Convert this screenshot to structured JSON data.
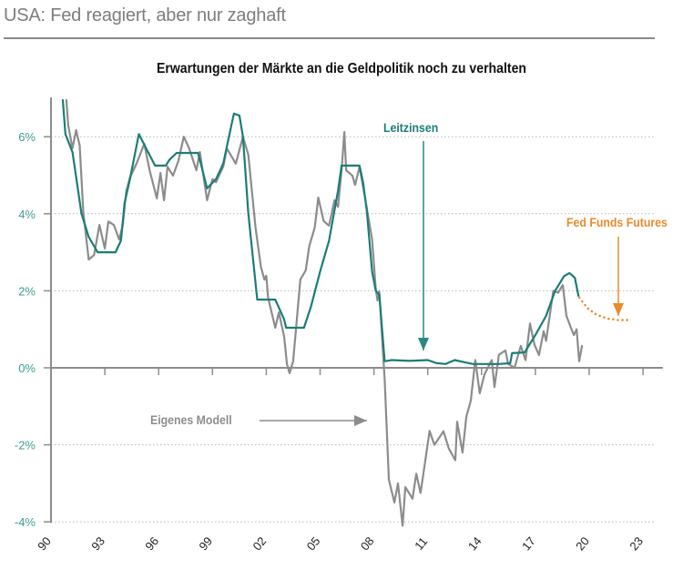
{
  "headline": "USA: Fed reagiert, aber nur zaghaft",
  "chart_data": {
    "type": "line",
    "title": "Erwartungen der Märkte an die Geldpolitik noch zu verhalten",
    "xlabel": "",
    "ylabel": "",
    "xlim": [
      1990,
      2024
    ],
    "ylim": [
      -4,
      7
    ],
    "grid": "horizontal dotted",
    "x_ticks": [
      1990,
      1993,
      1996,
      1999,
      2002,
      2005,
      2008,
      2011,
      2014,
      2017,
      2020,
      2023
    ],
    "x_tick_labels": [
      "90",
      "93",
      "96",
      "99",
      "02",
      "05",
      "08",
      "11",
      "14",
      "17",
      "20",
      "23"
    ],
    "y_ticks": [
      -4,
      -2,
      0,
      2,
      4,
      6
    ],
    "y_tick_labels": [
      "-4%",
      "-2%",
      "0%",
      "2%",
      "4%",
      "6%"
    ],
    "colors": {
      "leitzinsen": "#1b7d76",
      "modell": "#8c8c8c",
      "futures": "#e98a2c",
      "axis_labels": "#3f9b95"
    },
    "annotations": {
      "leitzinsen": "Leitzinsen",
      "futures": "Fed Funds Futures",
      "modell": "Eigenes Modell"
    },
    "series": [
      {
        "name": "Leitzinsen",
        "style": "solid",
        "points": [
          [
            1990.66,
            6.95
          ],
          [
            1990.8,
            6.07
          ],
          [
            1991.2,
            5.6
          ],
          [
            1991.7,
            4.0
          ],
          [
            1992.1,
            3.4
          ],
          [
            1992.6,
            3.0
          ],
          [
            1993.6,
            3.0
          ],
          [
            1993.9,
            3.3
          ],
          [
            1994.1,
            4.28
          ],
          [
            1994.4,
            4.9
          ],
          [
            1994.9,
            6.07
          ],
          [
            1995.3,
            5.7
          ],
          [
            1995.8,
            5.25
          ],
          [
            1996.4,
            5.25
          ],
          [
            1996.6,
            5.4
          ],
          [
            1997.0,
            5.58
          ],
          [
            1998.2,
            5.58
          ],
          [
            1998.7,
            4.66
          ],
          [
            1999.2,
            4.9
          ],
          [
            1999.6,
            5.3
          ],
          [
            2000.1,
            6.4
          ],
          [
            2000.2,
            6.6
          ],
          [
            2000.5,
            6.55
          ],
          [
            2000.7,
            6.0
          ],
          [
            2001.0,
            4.0
          ],
          [
            2001.5,
            1.77
          ],
          [
            2002.5,
            1.77
          ],
          [
            2003.0,
            1.25
          ],
          [
            2003.1,
            1.04
          ],
          [
            2004.1,
            1.04
          ],
          [
            2004.5,
            1.6
          ],
          [
            2005.0,
            2.5
          ],
          [
            2005.5,
            3.3
          ],
          [
            2006.0,
            4.6
          ],
          [
            2006.2,
            5.25
          ],
          [
            2007.2,
            5.25
          ],
          [
            2007.4,
            4.8
          ],
          [
            2007.6,
            4.1
          ],
          [
            2007.9,
            2.5
          ],
          [
            2008.1,
            2.0
          ],
          [
            2008.3,
            1.9
          ],
          [
            2008.6,
            0.17
          ],
          [
            2009.0,
            0.2
          ],
          [
            2010.0,
            0.18
          ],
          [
            2011.0,
            0.2
          ],
          [
            2011.5,
            0.12
          ],
          [
            2012.0,
            0.1
          ],
          [
            2012.5,
            0.2
          ],
          [
            2013.0,
            0.15
          ],
          [
            2013.5,
            0.1
          ],
          [
            2014.0,
            0.1
          ],
          [
            2015.0,
            0.1
          ],
          [
            2015.6,
            0.12
          ],
          [
            2015.7,
            0.38
          ],
          [
            2016.4,
            0.4
          ],
          [
            2017.0,
            0.85
          ],
          [
            2017.6,
            1.35
          ],
          [
            2018.1,
            2.0
          ],
          [
            2018.6,
            2.38
          ],
          [
            2018.9,
            2.46
          ],
          [
            2019.2,
            2.34
          ],
          [
            2019.4,
            1.87
          ]
        ]
      },
      {
        "name": "Eigenes Modell",
        "style": "solid",
        "points": [
          [
            1990.86,
            6.95
          ],
          [
            1990.96,
            6.3
          ],
          [
            1991.2,
            5.7
          ],
          [
            1991.4,
            6.17
          ],
          [
            1991.6,
            5.77
          ],
          [
            1991.8,
            4.04
          ],
          [
            1992.1,
            2.81
          ],
          [
            1992.4,
            2.93
          ],
          [
            1992.7,
            3.71
          ],
          [
            1993.0,
            3.1
          ],
          [
            1993.2,
            3.8
          ],
          [
            1993.5,
            3.71
          ],
          [
            1993.8,
            3.33
          ],
          [
            1994.0,
            3.71
          ],
          [
            1994.2,
            4.59
          ],
          [
            1994.4,
            4.94
          ],
          [
            1994.8,
            5.34
          ],
          [
            1995.2,
            5.82
          ],
          [
            1995.5,
            5.13
          ],
          [
            1995.9,
            4.4
          ],
          [
            1996.1,
            5.06
          ],
          [
            1996.3,
            4.35
          ],
          [
            1996.5,
            5.22
          ],
          [
            1996.8,
            4.99
          ],
          [
            1997.1,
            5.37
          ],
          [
            1997.4,
            6.0
          ],
          [
            1997.7,
            5.7
          ],
          [
            1998.1,
            5.13
          ],
          [
            1998.3,
            5.6
          ],
          [
            1998.7,
            4.35
          ],
          [
            1999.0,
            4.9
          ],
          [
            1999.2,
            4.82
          ],
          [
            1999.6,
            5.22
          ],
          [
            1999.8,
            5.7
          ],
          [
            2000.3,
            5.3
          ],
          [
            2000.7,
            6.0
          ],
          [
            2001.0,
            5.53
          ],
          [
            2001.2,
            4.59
          ],
          [
            2001.4,
            3.64
          ],
          [
            2001.7,
            2.62
          ],
          [
            2001.9,
            2.29
          ],
          [
            2002.0,
            2.39
          ],
          [
            2002.1,
            1.82
          ],
          [
            2002.5,
            1.04
          ],
          [
            2002.7,
            1.44
          ],
          [
            2003.0,
            0.8
          ],
          [
            2003.15,
            0.09
          ],
          [
            2003.3,
            -0.14
          ],
          [
            2003.5,
            0.17
          ],
          [
            2003.65,
            0.97
          ],
          [
            2003.9,
            2.29
          ],
          [
            2004.2,
            2.53
          ],
          [
            2004.4,
            3.17
          ],
          [
            2004.7,
            3.64
          ],
          [
            2004.9,
            4.42
          ],
          [
            2005.2,
            3.81
          ],
          [
            2005.5,
            3.69
          ],
          [
            2005.8,
            4.35
          ],
          [
            2006.0,
            4.18
          ],
          [
            2006.2,
            5.13
          ],
          [
            2006.35,
            6.12
          ],
          [
            2006.45,
            5.13
          ],
          [
            2006.8,
            4.99
          ],
          [
            2006.95,
            4.75
          ],
          [
            2007.2,
            5.22
          ],
          [
            2007.5,
            4.42
          ],
          [
            2007.7,
            3.88
          ],
          [
            2007.9,
            3.33
          ],
          [
            2008.1,
            2.06
          ],
          [
            2008.2,
            1.75
          ],
          [
            2008.3,
            1.99
          ],
          [
            2008.6,
            -0.3
          ],
          [
            2008.83,
            -2.9
          ],
          [
            2009.14,
            -3.5
          ],
          [
            2009.34,
            -3.0
          ],
          [
            2009.6,
            -4.1
          ],
          [
            2009.75,
            -3.1
          ],
          [
            2010.15,
            -3.4
          ],
          [
            2010.36,
            -2.75
          ],
          [
            2010.6,
            -3.25
          ],
          [
            2010.86,
            -2.43
          ],
          [
            2011.1,
            -1.64
          ],
          [
            2011.37,
            -2.0
          ],
          [
            2011.88,
            -1.65
          ],
          [
            2012.18,
            -2.1
          ],
          [
            2012.54,
            -2.4
          ],
          [
            2012.64,
            -1.4
          ],
          [
            2012.94,
            -2.2
          ],
          [
            2013.15,
            -1.27
          ],
          [
            2013.4,
            -0.85
          ],
          [
            2013.65,
            0.2
          ],
          [
            2013.9,
            -0.66
          ],
          [
            2014.16,
            -0.17
          ],
          [
            2014.57,
            0.2
          ],
          [
            2014.72,
            -0.5
          ],
          [
            2014.97,
            0.34
          ],
          [
            2015.33,
            0.45
          ],
          [
            2015.48,
            0.1
          ],
          [
            2015.84,
            0.0
          ],
          [
            2016.19,
            0.57
          ],
          [
            2016.45,
            0.2
          ],
          [
            2016.7,
            1.15
          ],
          [
            2016.95,
            0.6
          ],
          [
            2017.2,
            0.33
          ],
          [
            2017.46,
            0.95
          ],
          [
            2017.6,
            0.7
          ],
          [
            2018.0,
            2.0
          ],
          [
            2018.27,
            1.95
          ],
          [
            2018.53,
            2.15
          ],
          [
            2018.73,
            1.35
          ],
          [
            2018.98,
            1.04
          ],
          [
            2019.14,
            0.85
          ],
          [
            2019.3,
            1.0
          ],
          [
            2019.44,
            0.17
          ],
          [
            2019.6,
            0.57
          ]
        ]
      },
      {
        "name": "Fed Funds Futures",
        "style": "dotted",
        "points": [
          [
            2019.45,
            1.82
          ],
          [
            2019.9,
            1.55
          ],
          [
            2020.4,
            1.38
          ],
          [
            2021.0,
            1.28
          ],
          [
            2021.6,
            1.24
          ],
          [
            2022.3,
            1.24
          ]
        ]
      }
    ]
  }
}
